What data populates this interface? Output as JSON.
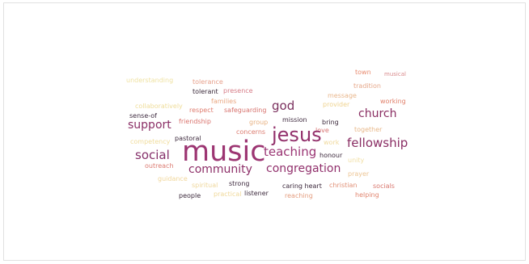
{
  "word_cloud": {
    "words": [
      {
        "text": "understanding",
        "color": "#efe2a2"
      },
      {
        "text": "tolerance",
        "color": "#e7a08b"
      },
      {
        "text": "tolerant",
        "color": "#3b2a3a"
      },
      {
        "text": "presence",
        "color": "#d67b86"
      },
      {
        "text": "town",
        "color": "#e88a6e"
      },
      {
        "text": "musical",
        "color": "#d98b8d"
      },
      {
        "text": "tradition",
        "color": "#e6a78a"
      },
      {
        "text": "message",
        "color": "#e9b78c"
      },
      {
        "text": "provider",
        "color": "#efd38f"
      },
      {
        "text": "working",
        "color": "#e07e68"
      },
      {
        "text": "collaboratively",
        "color": "#efdd9a"
      },
      {
        "text": "families",
        "color": "#e9a782"
      },
      {
        "text": "respect",
        "color": "#df7b6e"
      },
      {
        "text": "safeguarding",
        "color": "#d7726d"
      },
      {
        "text": "god",
        "color": "#7a2f5d"
      },
      {
        "text": "church",
        "color": "#8a2e62"
      },
      {
        "text": "sense-of",
        "color": "#3d2a3e"
      },
      {
        "text": "mission",
        "color": "#3f2a3f"
      },
      {
        "text": "bring",
        "color": "#3c2a3c"
      },
      {
        "text": "support",
        "color": "#8b2f66"
      },
      {
        "text": "friendship",
        "color": "#d9736d"
      },
      {
        "text": "group",
        "color": "#e8b283"
      },
      {
        "text": "love",
        "color": "#d97573"
      },
      {
        "text": "together",
        "color": "#e8b88a"
      },
      {
        "text": "concerns",
        "color": "#dc7c6f"
      },
      {
        "text": "jesus",
        "color": "#92306b"
      },
      {
        "text": "competency",
        "color": "#f0dc9c"
      },
      {
        "text": "pastoral",
        "color": "#3d2a3d"
      },
      {
        "text": "work",
        "color": "#f0d99c"
      },
      {
        "text": "fellowship",
        "color": "#8a2e64"
      },
      {
        "text": "social",
        "color": "#85306a"
      },
      {
        "text": "music",
        "color": "#9c3572"
      },
      {
        "text": "teaching",
        "color": "#9a3473"
      },
      {
        "text": "honour",
        "color": "#3e2b3e"
      },
      {
        "text": "outreach",
        "color": "#dc7b72"
      },
      {
        "text": "unity",
        "color": "#f1dfa4"
      },
      {
        "text": "community",
        "color": "#8d2f68"
      },
      {
        "text": "congregation",
        "color": "#91306c"
      },
      {
        "text": "guidance",
        "color": "#f0d69a"
      },
      {
        "text": "prayer",
        "color": "#ecc493"
      },
      {
        "text": "spiritual",
        "color": "#efd79c"
      },
      {
        "text": "strong",
        "color": "#3e2b3f"
      },
      {
        "text": "caring heart",
        "color": "#3d2a3d"
      },
      {
        "text": "christian",
        "color": "#e19077"
      },
      {
        "text": "socials",
        "color": "#d9786f"
      },
      {
        "text": "people",
        "color": "#3c2a3c"
      },
      {
        "text": "practical",
        "color": "#f0d99a"
      },
      {
        "text": "listener",
        "color": "#3d2a3d"
      },
      {
        "text": "reaching",
        "color": "#e49d7f"
      },
      {
        "text": "helping",
        "color": "#e1846e"
      }
    ]
  }
}
